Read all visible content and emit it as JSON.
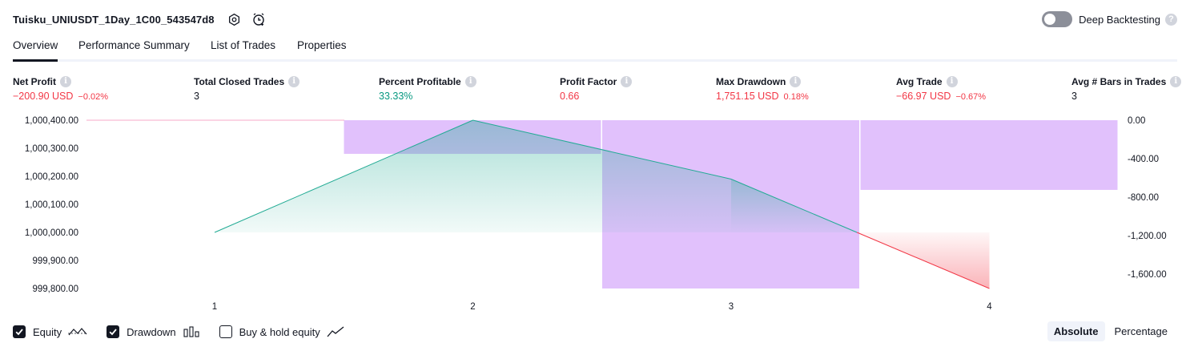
{
  "header": {
    "title": "Tuisku_UNIUSDT_1Day_1C00_543547d8",
    "deep_backtesting_label": "Deep Backtesting",
    "deep_backtesting_enabled": false
  },
  "tabs": [
    {
      "label": "Overview",
      "active": true
    },
    {
      "label": "Performance Summary",
      "active": false
    },
    {
      "label": "List of Trades",
      "active": false
    },
    {
      "label": "Properties",
      "active": false
    }
  ],
  "metrics": [
    {
      "label": "Net Profit",
      "value": "−200.90 USD",
      "percent": "−0.02%",
      "tone": "neg"
    },
    {
      "label": "Total Closed Trades",
      "value": "3",
      "percent": "",
      "tone": "plain"
    },
    {
      "label": "Percent Profitable",
      "value": "33.33%",
      "percent": "",
      "tone": "pos"
    },
    {
      "label": "Profit Factor",
      "value": "0.66",
      "percent": "",
      "tone": "neg"
    },
    {
      "label": "Max Drawdown",
      "value": "1,751.15 USD",
      "percent": "0.18%",
      "tone": "neg"
    },
    {
      "label": "Avg Trade",
      "value": "−66.97 USD",
      "percent": "−0.67%",
      "tone": "neg"
    },
    {
      "label": "Avg # Bars in Trades",
      "value": "3",
      "percent": "",
      "tone": "plain"
    }
  ],
  "chart_data": {
    "type": "line",
    "x": [
      1,
      2,
      3,
      4
    ],
    "equity": [
      1000000.0,
      1000400.0,
      1000190.0,
      999800.0
    ],
    "drawdown_bars": [
      {
        "trade": 2,
        "value": -350
      },
      {
        "trade": 3,
        "value": -1751.15
      },
      {
        "trade": 4,
        "value": -725
      }
    ],
    "left_axis_ticks": [
      "1,000,400.00",
      "1,000,300.00",
      "1,000,200.00",
      "1,000,100.00",
      "1,000,000.00",
      "999,900.00",
      "999,800.00"
    ],
    "left_axis_values": [
      1000400,
      1000300,
      1000200,
      1000100,
      1000000,
      999900,
      999800
    ],
    "right_axis_ticks": [
      "0.00",
      "-400.00",
      "-800.00",
      "-1,200.00",
      "-1,600.00"
    ],
    "right_axis_values": [
      0,
      -400,
      -800,
      -1200,
      -1600
    ],
    "x_ticks": [
      "1",
      "2",
      "3",
      "4"
    ],
    "equity_ylim": [
      999800,
      1000400
    ],
    "drawdown_ylim": [
      -1751.15,
      0
    ],
    "colors": {
      "equity_up": "#22ab94",
      "equity_down": "#f23645",
      "drawdown": "#cf9bfa",
      "baseline": "#f7a8c8"
    }
  },
  "legend": {
    "equity_label": "Equity",
    "equity_checked": true,
    "drawdown_label": "Drawdown",
    "drawdown_checked": true,
    "buyhold_label": "Buy & hold equity",
    "buyhold_checked": false
  },
  "mode": {
    "absolute_label": "Absolute",
    "percentage_label": "Percentage",
    "selected": "Absolute"
  }
}
